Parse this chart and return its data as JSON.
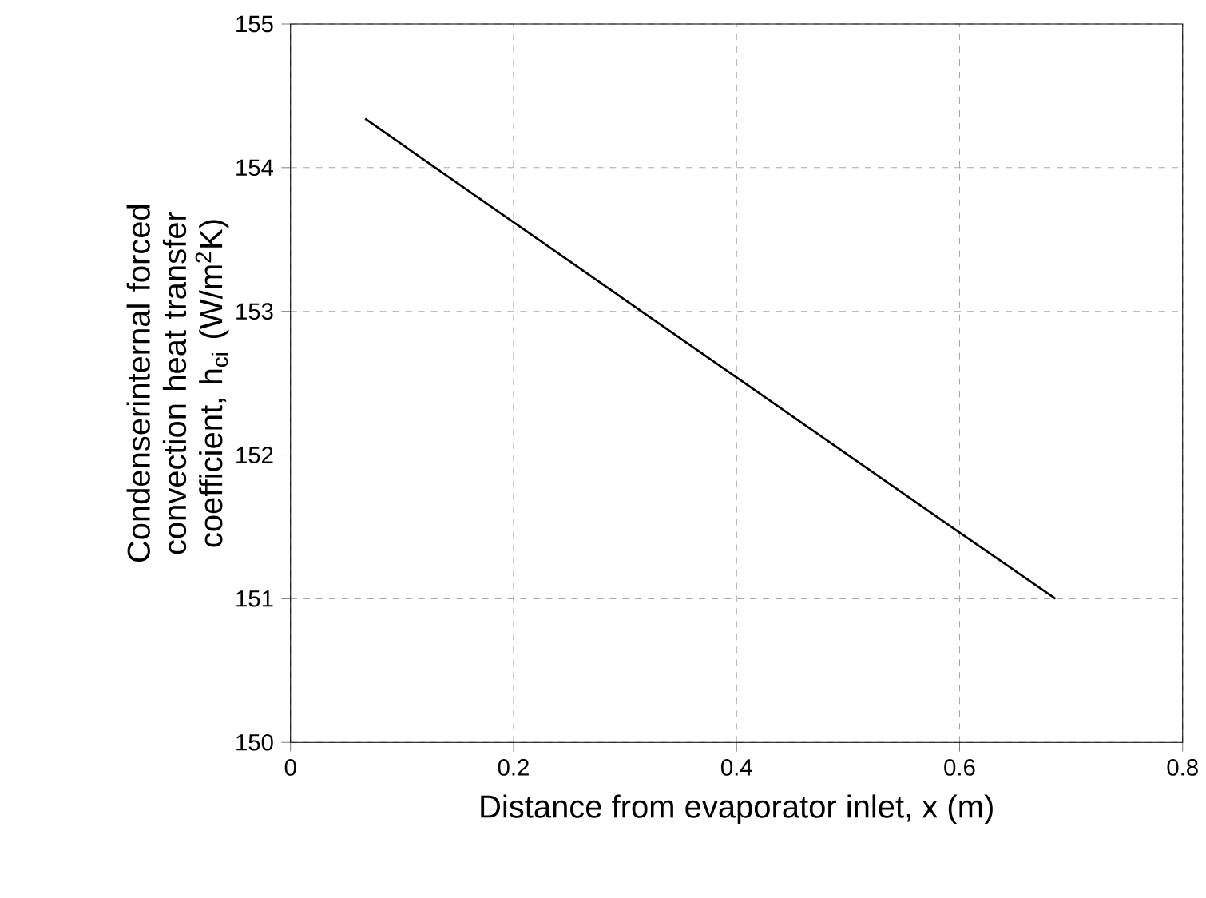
{
  "chart_data": {
    "type": "line",
    "xlabel": "Distance from evaporator inlet, x (m)",
    "ylabel": "Condenserinternal forced convection heat transfer coefficient, h$_{ci}$ (W/m$^{2}$K)",
    "x": [
      0.067,
      0.2,
      0.3,
      0.4,
      0.5,
      0.6,
      0.686
    ],
    "series": [
      {
        "color": "#000000",
        "values": [
          154.34,
          153.62,
          153.08,
          152.54,
          152.0,
          151.46,
          151.0
        ]
      }
    ],
    "xlim": [
      0,
      0.8
    ],
    "xticks": [
      0,
      0.2,
      0.4,
      0.6,
      0.8
    ],
    "ylim": [
      150,
      155
    ],
    "yticks": [
      150,
      151,
      152,
      153,
      154,
      155
    ],
    "grid": true,
    "marker": "none",
    "line_style": "solid"
  }
}
